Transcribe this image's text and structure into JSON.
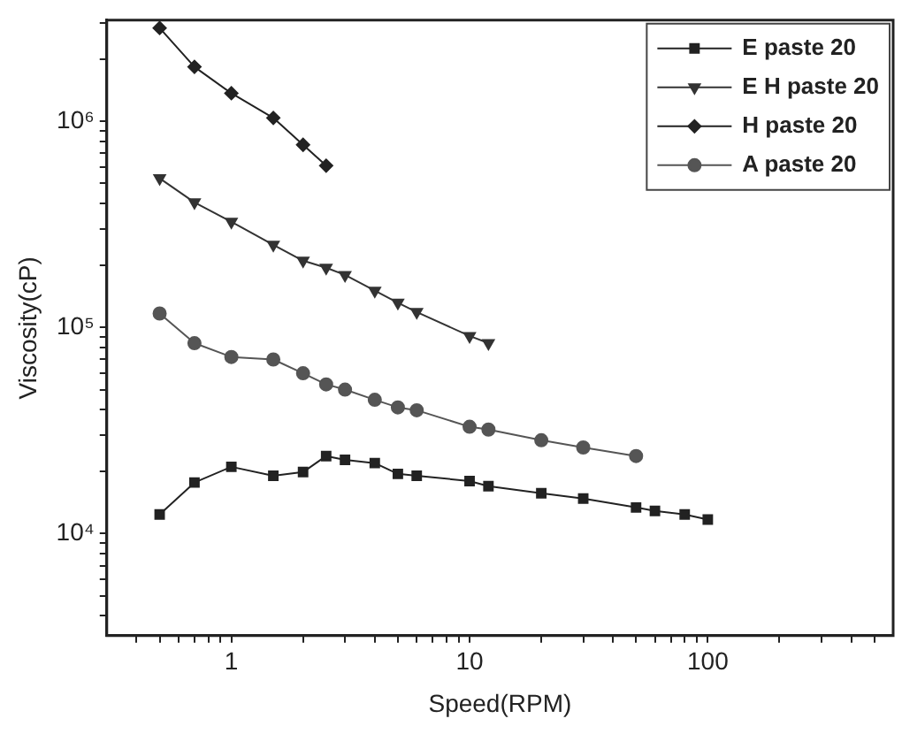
{
  "chart_data": {
    "type": "line",
    "xlabel": "Speed(RPM)",
    "ylabel": "Viscosity(cP)",
    "log": "xy",
    "grid": false,
    "legend": "top right",
    "xlim": [
      0.3,
      600
    ],
    "ylim": [
      3200,
      3100000
    ],
    "xticks": [
      {
        "value": 0.4,
        "label": null
      },
      {
        "value": 0.5,
        "label": null
      },
      {
        "value": 0.6,
        "label": null
      },
      {
        "value": 0.7,
        "label": null
      },
      {
        "value": 0.8,
        "label": null
      },
      {
        "value": 0.9,
        "label": null
      },
      1,
      {
        "value": 2,
        "label": null
      },
      {
        "value": 3,
        "label": null
      },
      {
        "value": 4,
        "label": null
      },
      {
        "value": 5,
        "label": null
      },
      {
        "value": 6,
        "label": null
      },
      {
        "value": 7,
        "label": null
      },
      {
        "value": 8,
        "label": null
      },
      {
        "value": 9,
        "label": null
      },
      10,
      {
        "value": 20,
        "label": null
      },
      {
        "value": 30,
        "label": null
      },
      {
        "value": 40,
        "label": null
      },
      {
        "value": 50,
        "label": null
      },
      {
        "value": 60,
        "label": null
      },
      {
        "value": 70,
        "label": null
      },
      {
        "value": 80,
        "label": null
      },
      {
        "value": 90,
        "label": null
      },
      100,
      {
        "value": 200,
        "label": null
      },
      {
        "value": 300,
        "label": null
      },
      {
        "value": 400,
        "label": null
      },
      {
        "value": 500,
        "label": null
      }
    ],
    "yticks": [
      {
        "value": 4000,
        "label": null
      },
      {
        "value": 5000,
        "label": null
      },
      {
        "value": 6000,
        "label": null
      },
      {
        "value": 7000,
        "label": null
      },
      {
        "value": 8000,
        "label": null
      },
      {
        "value": 9000,
        "label": null
      },
      {
        "value": 10000,
        "label": "10⁴"
      },
      {
        "value": 20000,
        "label": null
      },
      {
        "value": 30000,
        "label": null
      },
      {
        "value": 40000,
        "label": null
      },
      {
        "value": 50000,
        "label": null
      },
      {
        "value": 60000,
        "label": null
      },
      {
        "value": 70000,
        "label": null
      },
      {
        "value": 80000,
        "label": null
      },
      {
        "value": 90000,
        "label": null
      },
      {
        "value": 100000,
        "label": "10⁵"
      },
      {
        "value": 200000,
        "label": null
      },
      {
        "value": 300000,
        "label": null
      },
      {
        "value": 400000,
        "label": null
      },
      {
        "value": 500000,
        "label": null
      },
      {
        "value": 600000,
        "label": null
      },
      {
        "value": 700000,
        "label": null
      },
      {
        "value": 800000,
        "label": null
      },
      {
        "value": 900000,
        "label": null
      },
      {
        "value": 1000000,
        "label": "10⁶"
      },
      {
        "value": 2000000,
        "label": null
      },
      {
        "value": 3000000,
        "label": null
      }
    ],
    "series": [
      {
        "name": "E paste 20",
        "color": "#222222",
        "marker": "square",
        "x": [
          0.5,
          0.7,
          1,
          1.5,
          2,
          2.5,
          3,
          4,
          5,
          6,
          10,
          12,
          20,
          30,
          50,
          60,
          80,
          100
        ],
        "values": [
          12400,
          17700,
          21100,
          19100,
          19900,
          23800,
          22800,
          22000,
          19500,
          19100,
          18000,
          17000,
          15700,
          14800,
          13400,
          12900,
          12400,
          11700
        ]
      },
      {
        "name": "E H paste 20",
        "color": "#333333",
        "marker": "triangle",
        "x": [
          0.5,
          0.7,
          1,
          1.5,
          2,
          2.5,
          3,
          4,
          5,
          6,
          10,
          12
        ],
        "values": [
          530000,
          405000,
          326000,
          252000,
          211000,
          195000,
          180000,
          151000,
          132000,
          119000,
          91000,
          84000
        ]
      },
      {
        "name": "H paste 20",
        "color": "#222222",
        "marker": "diamond",
        "x": [
          0.5,
          0.7,
          1,
          1.5,
          2,
          2.5
        ],
        "values": [
          2840000,
          1840000,
          1370000,
          1040000,
          770000,
          610000
        ]
      },
      {
        "name": "A paste 20",
        "color": "#555555",
        "marker": "circle",
        "x": [
          0.5,
          0.7,
          1,
          1.5,
          2,
          2.5,
          3,
          4,
          5,
          6,
          10,
          12,
          20,
          30,
          50
        ],
        "values": [
          117000,
          84000,
          72000,
          70000,
          60000,
          53000,
          50000,
          44600,
          41000,
          39700,
          33000,
          32000,
          28400,
          26200,
          23800
        ]
      }
    ]
  }
}
